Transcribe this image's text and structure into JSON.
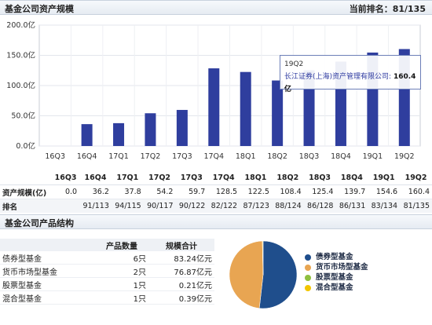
{
  "header": {
    "title": "基金公司资产规模",
    "rank_label": "当前排名：81/135"
  },
  "chart_data": {
    "type": "bar",
    "categories": [
      "16Q3",
      "16Q4",
      "17Q1",
      "17Q2",
      "17Q3",
      "17Q4",
      "18Q1",
      "18Q2",
      "18Q3",
      "18Q4",
      "19Q1",
      "19Q2"
    ],
    "values": [
      0.0,
      36.2,
      37.8,
      54.2,
      59.7,
      128.5,
      122.5,
      108.4,
      125.4,
      139.7,
      154.6,
      160.4
    ],
    "y_ticks": [
      "0.0亿",
      "50.0亿",
      "100.0亿",
      "150.0亿",
      "200.0亿"
    ],
    "ylim": [
      0,
      200
    ],
    "bar_color": "#2f3e9e",
    "grid": true
  },
  "tooltip": {
    "period": "19Q2",
    "series": "长江证券(上海)资产管理有限公司:",
    "value": "160.4亿"
  },
  "table": {
    "row1_label": "资产规模(亿)",
    "row2_label": "排名",
    "columns": [
      "16Q3",
      "16Q4",
      "17Q1",
      "17Q2",
      "17Q3",
      "17Q4",
      "18Q1",
      "18Q2",
      "18Q3",
      "18Q4",
      "19Q1",
      "19Q2"
    ],
    "assets": [
      "0.0",
      "36.2",
      "37.8",
      "54.2",
      "59.7",
      "128.5",
      "122.5",
      "108.4",
      "125.4",
      "139.7",
      "154.6",
      "160.4"
    ],
    "ranks": [
      "",
      "91/113",
      "94/115",
      "90/117",
      "90/122",
      "82/122",
      "87/123",
      "88/124",
      "86/128",
      "86/131",
      "83/134",
      "81/135"
    ]
  },
  "product_header": {
    "title": "基金公司产品结构"
  },
  "product_table": {
    "col_count": "产品数量",
    "col_amount": "规模合计",
    "rows": [
      {
        "name": "债券型基金",
        "count": "6只",
        "amount": "83.24亿元"
      },
      {
        "name": "货币市场型基金",
        "count": "2只",
        "amount": "76.87亿元"
      },
      {
        "name": "股票型基金",
        "count": "1只",
        "amount": "0.21亿元"
      },
      {
        "name": "混合型基金",
        "count": "1只",
        "amount": "0.39亿元"
      }
    ]
  },
  "pie": {
    "slices": [
      {
        "label": "债券型基金",
        "value": 83.24,
        "color": "#1f4e8c"
      },
      {
        "label": "货币市场型基金",
        "value": 76.87,
        "color": "#e8a552"
      },
      {
        "label": "股票型基金",
        "value": 0.21,
        "color": "#8fbf3f"
      },
      {
        "label": "混合型基金",
        "value": 0.39,
        "color": "#f2c500"
      }
    ]
  }
}
